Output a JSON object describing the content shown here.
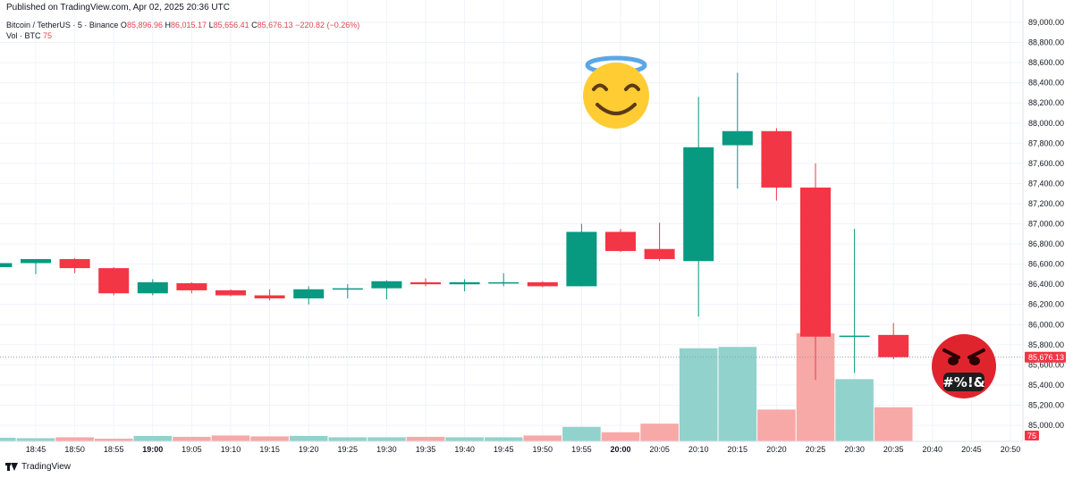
{
  "header": {
    "published": "Published on TradingView.com, Apr 02, 2025 20:36 UTC",
    "symbol": "Bitcoin / TetherUS · 5 · Binance",
    "open_label": "O",
    "open": "85,896.96",
    "high_label": "H",
    "high": "86,015.17",
    "low_label": "L",
    "low": "85,656.41",
    "close_label": "C",
    "close": "85,676.13",
    "change": "−220.82 (−0.26%)",
    "vol_label": "Vol · BTC",
    "vol_value": "75"
  },
  "footer": {
    "brand": "TradingView"
  },
  "colors": {
    "up": "#089981",
    "down": "#f23645",
    "up_vol": "#92d2cc",
    "down_vol": "#f7a9a7",
    "grid": "#f0f3fa"
  },
  "chart_data": {
    "type": "candlestick",
    "title": "",
    "xlabel": "",
    "ylabel": "",
    "ylim": [
      84800,
      89000
    ],
    "y_ticks": [
      "89,000.00",
      "88,800.00",
      "88,600.00",
      "88,400.00",
      "88,200.00",
      "88,000.00",
      "87,800.00",
      "87,600.00",
      "87,400.00",
      "87,200.00",
      "87,000.00",
      "86,800.00",
      "86,600.00",
      "86,400.00",
      "86,200.00",
      "86,000.00",
      "85,800.00",
      "85,600.00",
      "85,400.00",
      "85,200.00",
      "85,000.00"
    ],
    "y_tick_values": [
      89000,
      88800,
      88600,
      88400,
      88200,
      88000,
      87800,
      87600,
      87400,
      87200,
      87000,
      86800,
      86600,
      86400,
      86200,
      86000,
      85800,
      85600,
      85400,
      85200,
      85000
    ],
    "x_ticks": [
      {
        "t": "18:45",
        "i": 1
      },
      {
        "t": "18:50",
        "i": 2
      },
      {
        "t": "18:55",
        "i": 3
      },
      {
        "t": "19:00",
        "i": 4,
        "bold": true
      },
      {
        "t": "19:05",
        "i": 5
      },
      {
        "t": "19:10",
        "i": 6
      },
      {
        "t": "19:15",
        "i": 7
      },
      {
        "t": "19:20",
        "i": 8
      },
      {
        "t": "19:25",
        "i": 9
      },
      {
        "t": "19:30",
        "i": 10
      },
      {
        "t": "19:35",
        "i": 11
      },
      {
        "t": "19:40",
        "i": 12
      },
      {
        "t": "19:45",
        "i": 13
      },
      {
        "t": "19:50",
        "i": 14
      },
      {
        "t": "19:55",
        "i": 15
      },
      {
        "t": "20:00",
        "i": 16,
        "bold": true
      },
      {
        "t": "20:05",
        "i": 17
      },
      {
        "t": "20:10",
        "i": 18
      },
      {
        "t": "20:15",
        "i": 19
      },
      {
        "t": "20:20",
        "i": 20
      },
      {
        "t": "20:25",
        "i": 21
      },
      {
        "t": "20:30",
        "i": 22
      },
      {
        "t": "20:35",
        "i": 23
      },
      {
        "t": "20:40",
        "i": 24
      },
      {
        "t": "20:45",
        "i": 25
      },
      {
        "t": "20:50",
        "i": 26
      }
    ],
    "last_price": 85676.13,
    "last_price_label": "85,676.13",
    "volume_label": "75",
    "candles": [
      {
        "o": 86570,
        "h": 86620,
        "l": 86540,
        "c": 86610,
        "v": 8
      },
      {
        "o": 86610,
        "h": 86640,
        "l": 86500,
        "c": 86650,
        "v": 7
      },
      {
        "o": 86650,
        "h": 86660,
        "l": 86510,
        "c": 86560,
        "v": 9
      },
      {
        "o": 86560,
        "h": 86570,
        "l": 86290,
        "c": 86310,
        "v": 6
      },
      {
        "o": 86310,
        "h": 86450,
        "l": 86290,
        "c": 86420,
        "v": 12
      },
      {
        "o": 86410,
        "h": 86420,
        "l": 86310,
        "c": 86340,
        "v": 10
      },
      {
        "o": 86340,
        "h": 86350,
        "l": 86280,
        "c": 86290,
        "v": 13
      },
      {
        "o": 86290,
        "h": 86350,
        "l": 86240,
        "c": 86260,
        "v": 11
      },
      {
        "o": 86260,
        "h": 86380,
        "l": 86200,
        "c": 86350,
        "v": 12
      },
      {
        "o": 86360,
        "h": 86400,
        "l": 86260,
        "c": 86360,
        "v": 9
      },
      {
        "o": 86360,
        "h": 86440,
        "l": 86250,
        "c": 86430,
        "v": 9
      },
      {
        "o": 86420,
        "h": 86460,
        "l": 86380,
        "c": 86400,
        "v": 10
      },
      {
        "o": 86400,
        "h": 86450,
        "l": 86330,
        "c": 86420,
        "v": 9
      },
      {
        "o": 86410,
        "h": 86510,
        "l": 86380,
        "c": 86420,
        "v": 9
      },
      {
        "o": 86420,
        "h": 86430,
        "l": 86370,
        "c": 86380,
        "v": 13
      },
      {
        "o": 86380,
        "h": 87000,
        "l": 86380,
        "c": 86920,
        "v": 32
      },
      {
        "o": 86920,
        "h": 86950,
        "l": 86720,
        "c": 86730,
        "v": 20
      },
      {
        "o": 86750,
        "h": 87010,
        "l": 86630,
        "c": 86650,
        "v": 39
      },
      {
        "o": 86630,
        "h": 88260,
        "l": 86080,
        "c": 87760,
        "v": 205
      },
      {
        "o": 87780,
        "h": 88500,
        "l": 87350,
        "c": 87920,
        "v": 208
      },
      {
        "o": 87920,
        "h": 87950,
        "l": 87230,
        "c": 87360,
        "v": 70
      },
      {
        "o": 87360,
        "h": 87600,
        "l": 85450,
        "c": 85880,
        "v": 238
      },
      {
        "o": 85880,
        "h": 86950,
        "l": 85520,
        "c": 85890,
        "v": 137
      },
      {
        "o": 85897,
        "h": 86015,
        "l": 85656,
        "c": 85676,
        "v": 75
      }
    ]
  }
}
